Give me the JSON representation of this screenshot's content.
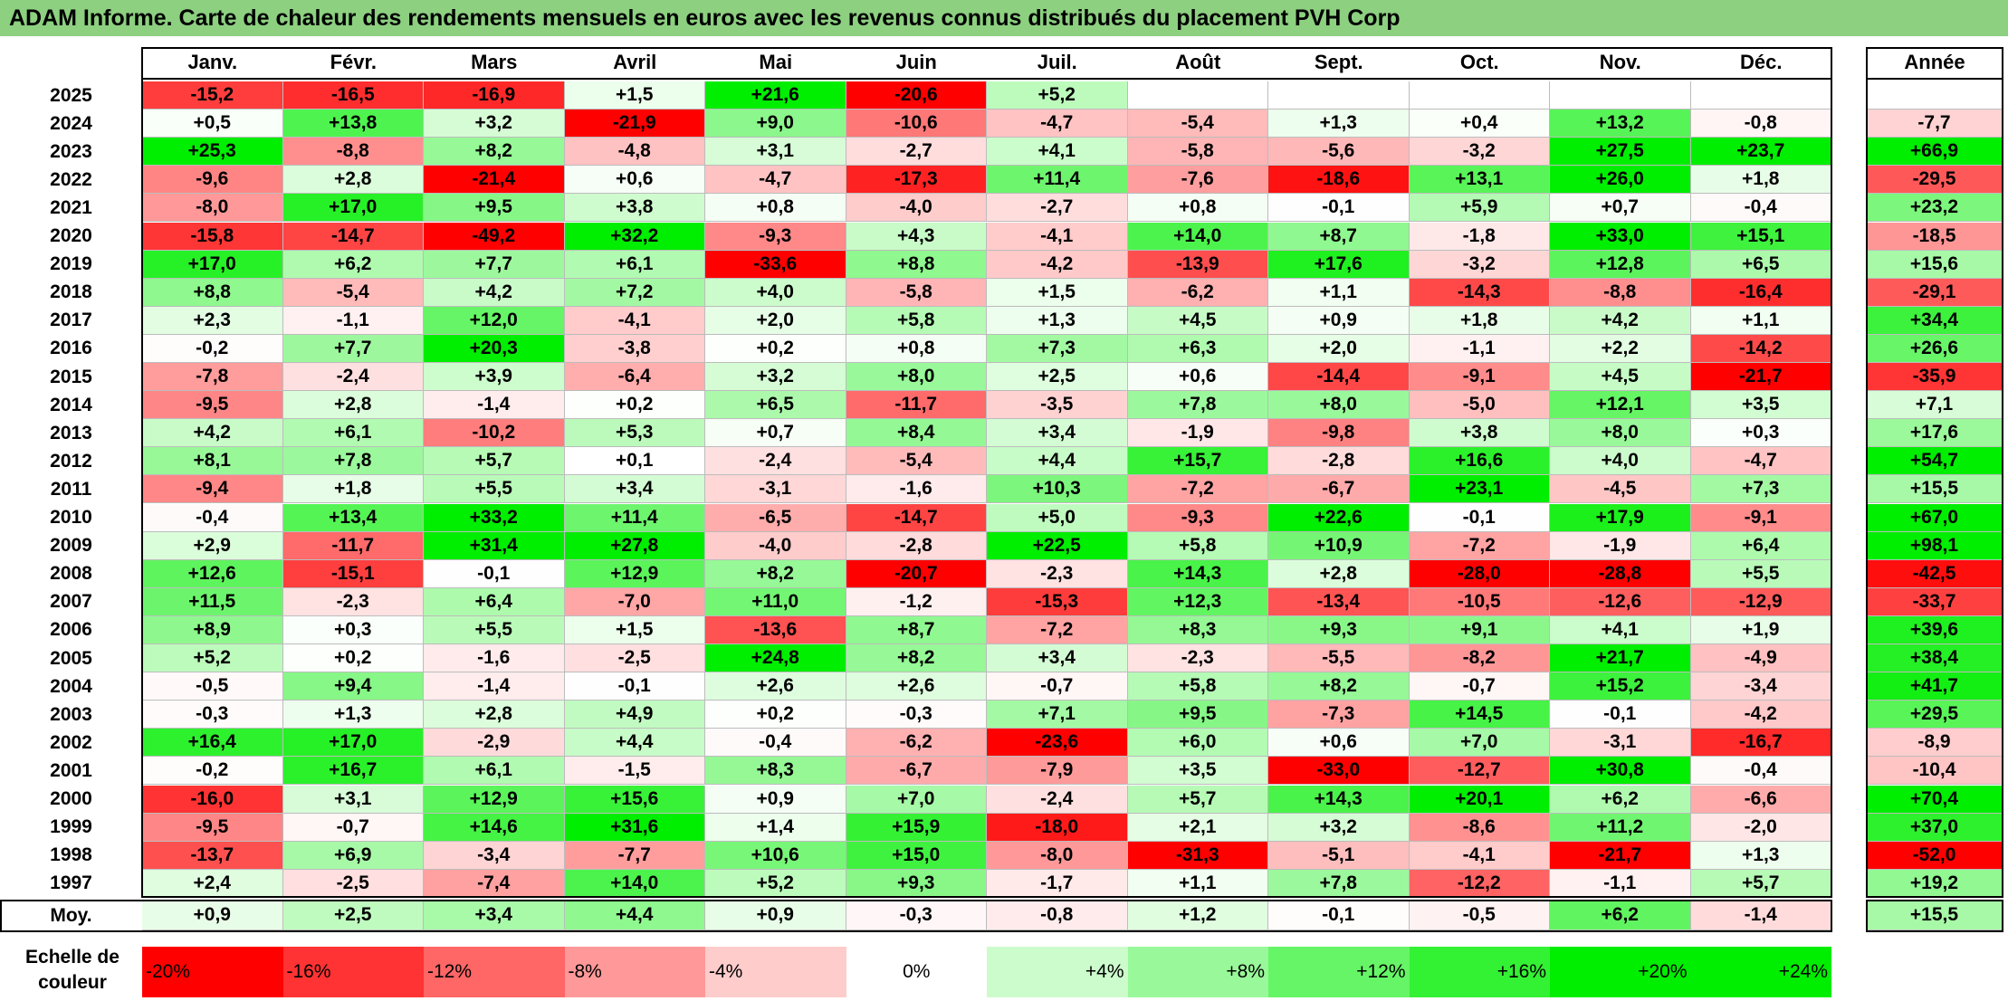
{
  "title": "ADAM Informe. Carte de chaleur des rendements mensuels en euros avec les revenus connus distribués du placement PVH Corp",
  "chart_data": {
    "type": "heatmap",
    "months": [
      "Janv.",
      "Févr.",
      "Mars",
      "Avril",
      "Mai",
      "Juin",
      "Juil.",
      "Août",
      "Sept.",
      "Oct.",
      "Nov.",
      "Déc."
    ],
    "year_header": "Année",
    "rows": [
      {
        "year": "2025",
        "values": [
          "-15,2",
          "-16,5",
          "-16,9",
          "+1,5",
          "+21,6",
          "-20,6",
          "+5,2",
          "",
          "",
          "",
          "",
          ""
        ],
        "annual": ""
      },
      {
        "year": "2024",
        "values": [
          "+0,5",
          "+13,8",
          "+3,2",
          "-21,9",
          "+9,0",
          "-10,6",
          "-4,7",
          "-5,4",
          "+1,3",
          "+0,4",
          "+13,2",
          "-0,8"
        ],
        "annual": "-7,7"
      },
      {
        "year": "2023",
        "values": [
          "+25,3",
          "-8,8",
          "+8,2",
          "-4,8",
          "+3,1",
          "-2,7",
          "+4,1",
          "-5,8",
          "-5,6",
          "-3,2",
          "+27,5",
          "+23,7"
        ],
        "annual": "+66,9"
      },
      {
        "year": "2022",
        "values": [
          "-9,6",
          "+2,8",
          "-21,4",
          "+0,6",
          "-4,7",
          "-17,3",
          "+11,4",
          "-7,6",
          "-18,6",
          "+13,1",
          "+26,0",
          "+1,8"
        ],
        "annual": "-29,5"
      },
      {
        "year": "2021",
        "values": [
          "-8,0",
          "+17,0",
          "+9,5",
          "+3,8",
          "+0,8",
          "-4,0",
          "-2,7",
          "+0,8",
          "-0,1",
          "+5,9",
          "+0,7",
          "-0,4"
        ],
        "annual": "+23,2"
      },
      {
        "year": "2020",
        "values": [
          "-15,8",
          "-14,7",
          "-49,2",
          "+32,2",
          "-9,3",
          "+4,3",
          "-4,1",
          "+14,0",
          "+8,7",
          "-1,8",
          "+33,0",
          "+15,1"
        ],
        "annual": "-18,5"
      },
      {
        "year": "2019",
        "values": [
          "+17,0",
          "+6,2",
          "+7,7",
          "+6,1",
          "-33,6",
          "+8,8",
          "-4,2",
          "-13,9",
          "+17,6",
          "-3,2",
          "+12,8",
          "+6,5"
        ],
        "annual": "+15,6"
      },
      {
        "year": "2018",
        "values": [
          "+8,8",
          "-5,4",
          "+4,2",
          "+7,2",
          "+4,0",
          "-5,8",
          "+1,5",
          "-6,2",
          "+1,1",
          "-14,3",
          "-8,8",
          "-16,4"
        ],
        "annual": "-29,1"
      },
      {
        "year": "2017",
        "values": [
          "+2,3",
          "-1,1",
          "+12,0",
          "-4,1",
          "+2,0",
          "+5,8",
          "+1,3",
          "+4,5",
          "+0,9",
          "+1,8",
          "+4,2",
          "+1,1"
        ],
        "annual": "+34,4"
      },
      {
        "year": "2016",
        "values": [
          "-0,2",
          "+7,7",
          "+20,3",
          "-3,8",
          "+0,2",
          "+0,8",
          "+7,3",
          "+6,3",
          "+2,0",
          "-1,1",
          "+2,2",
          "-14,2"
        ],
        "annual": "+26,6"
      },
      {
        "year": "2015",
        "values": [
          "-7,8",
          "-2,4",
          "+3,9",
          "-6,4",
          "+3,2",
          "+8,0",
          "+2,5",
          "+0,6",
          "-14,4",
          "-9,1",
          "+4,5",
          "-21,7"
        ],
        "annual": "-35,9"
      },
      {
        "year": "2014",
        "values": [
          "-9,5",
          "+2,8",
          "-1,4",
          "+0,2",
          "+6,5",
          "-11,7",
          "-3,5",
          "+7,8",
          "+8,0",
          "-5,0",
          "+12,1",
          "+3,5"
        ],
        "annual": "+7,1"
      },
      {
        "year": "2013",
        "values": [
          "+4,2",
          "+6,1",
          "-10,2",
          "+5,3",
          "+0,7",
          "+8,4",
          "+3,4",
          "-1,9",
          "-9,8",
          "+3,8",
          "+8,0",
          "+0,3"
        ],
        "annual": "+17,6"
      },
      {
        "year": "2012",
        "values": [
          "+8,1",
          "+7,8",
          "+5,7",
          "+0,1",
          "-2,4",
          "-5,4",
          "+4,4",
          "+15,7",
          "-2,8",
          "+16,6",
          "+4,0",
          "-4,7"
        ],
        "annual": "+54,7"
      },
      {
        "year": "2011",
        "values": [
          "-9,4",
          "+1,8",
          "+5,5",
          "+3,4",
          "-3,1",
          "-1,6",
          "+10,3",
          "-7,2",
          "-6,7",
          "+23,1",
          "-4,5",
          "+7,3"
        ],
        "annual": "+15,5"
      },
      {
        "year": "2010",
        "values": [
          "-0,4",
          "+13,4",
          "+33,2",
          "+11,4",
          "-6,5",
          "-14,7",
          "+5,0",
          "-9,3",
          "+22,6",
          "-0,1",
          "+17,9",
          "-9,1"
        ],
        "annual": "+67,0"
      },
      {
        "year": "2009",
        "values": [
          "+2,9",
          "-11,7",
          "+31,4",
          "+27,8",
          "-4,0",
          "-2,8",
          "+22,5",
          "+5,8",
          "+10,9",
          "-7,2",
          "-1,9",
          "+6,4"
        ],
        "annual": "+98,1"
      },
      {
        "year": "2008",
        "values": [
          "+12,6",
          "-15,1",
          "-0,1",
          "+12,9",
          "+8,2",
          "-20,7",
          "-2,3",
          "+14,3",
          "+2,8",
          "-28,0",
          "-28,8",
          "+5,5"
        ],
        "annual": "-42,5"
      },
      {
        "year": "2007",
        "values": [
          "+11,5",
          "-2,3",
          "+6,4",
          "-7,0",
          "+11,0",
          "-1,2",
          "-15,3",
          "+12,3",
          "-13,4",
          "-10,5",
          "-12,6",
          "-12,9"
        ],
        "annual": "-33,7"
      },
      {
        "year": "2006",
        "values": [
          "+8,9",
          "+0,3",
          "+5,5",
          "+1,5",
          "-13,6",
          "+8,7",
          "-7,2",
          "+8,3",
          "+9,3",
          "+9,1",
          "+4,1",
          "+1,9"
        ],
        "annual": "+39,6"
      },
      {
        "year": "2005",
        "values": [
          "+5,2",
          "+0,2",
          "-1,6",
          "-2,5",
          "+24,8",
          "+8,2",
          "+3,4",
          "-2,3",
          "-5,5",
          "-8,2",
          "+21,7",
          "-4,9"
        ],
        "annual": "+38,4"
      },
      {
        "year": "2004",
        "values": [
          "-0,5",
          "+9,4",
          "-1,4",
          "-0,1",
          "+2,6",
          "+2,6",
          "-0,7",
          "+5,8",
          "+8,2",
          "-0,7",
          "+15,2",
          "-3,4"
        ],
        "annual": "+41,7"
      },
      {
        "year": "2003",
        "values": [
          "-0,3",
          "+1,3",
          "+2,8",
          "+4,9",
          "+0,2",
          "-0,3",
          "+7,1",
          "+9,5",
          "-7,3",
          "+14,5",
          "-0,1",
          "-4,2"
        ],
        "annual": "+29,5"
      },
      {
        "year": "2002",
        "values": [
          "+16,4",
          "+17,0",
          "-2,9",
          "+4,4",
          "-0,4",
          "-6,2",
          "-23,6",
          "+6,0",
          "+0,6",
          "+7,0",
          "-3,1",
          "-16,7"
        ],
        "annual": "-8,9"
      },
      {
        "year": "2001",
        "values": [
          "-0,2",
          "+16,7",
          "+6,1",
          "-1,5",
          "+8,3",
          "-6,7",
          "-7,9",
          "+3,5",
          "-33,0",
          "-12,7",
          "+30,8",
          "-0,4"
        ],
        "annual": "-10,4"
      },
      {
        "year": "2000",
        "values": [
          "-16,0",
          "+3,1",
          "+12,9",
          "+15,6",
          "+0,9",
          "+7,0",
          "-2,4",
          "+5,7",
          "+14,3",
          "+20,1",
          "+6,2",
          "-6,6"
        ],
        "annual": "+70,4"
      },
      {
        "year": "1999",
        "values": [
          "-9,5",
          "-0,7",
          "+14,6",
          "+31,6",
          "+1,4",
          "+15,9",
          "-18,0",
          "+2,1",
          "+3,2",
          "-8,6",
          "+11,2",
          "-2,0"
        ],
        "annual": "+37,0"
      },
      {
        "year": "1998",
        "values": [
          "-13,7",
          "+6,9",
          "-3,4",
          "-7,7",
          "+10,6",
          "+15,0",
          "-8,0",
          "-31,3",
          "-5,1",
          "-4,1",
          "-21,7",
          "+1,3"
        ],
        "annual": "-52,0"
      },
      {
        "year": "1997",
        "values": [
          "+2,4",
          "-2,5",
          "-7,4",
          "+14,0",
          "+5,2",
          "+9,3",
          "-1,7",
          "+1,1",
          "+7,8",
          "-12,2",
          "-1,1",
          "+5,7"
        ],
        "annual": "+19,2"
      }
    ],
    "average": {
      "label": "Moy.",
      "values": [
        "+0,9",
        "+2,5",
        "+3,4",
        "+4,4",
        "+0,9",
        "-0,3",
        "-0,8",
        "+1,2",
        "-0,1",
        "-0,5",
        "+6,2",
        "-1,4"
      ],
      "annual": "+15,5"
    },
    "scale": {
      "label_line1": "Echelle de",
      "label_line2": "couleur",
      "items": [
        "-20%",
        "-16%",
        "-12%",
        "-8%",
        "-4%",
        "0%",
        "+4%",
        "+8%",
        "+12%",
        "+16%",
        "+20%",
        "+24%"
      ],
      "values": [
        -20,
        -16,
        -12,
        -8,
        -4,
        0,
        4,
        8,
        12,
        16,
        20,
        24
      ]
    },
    "colors": {
      "negative_max": "#ff0000",
      "neutral": "#ffffff",
      "positive_max": "#00ee00"
    }
  }
}
